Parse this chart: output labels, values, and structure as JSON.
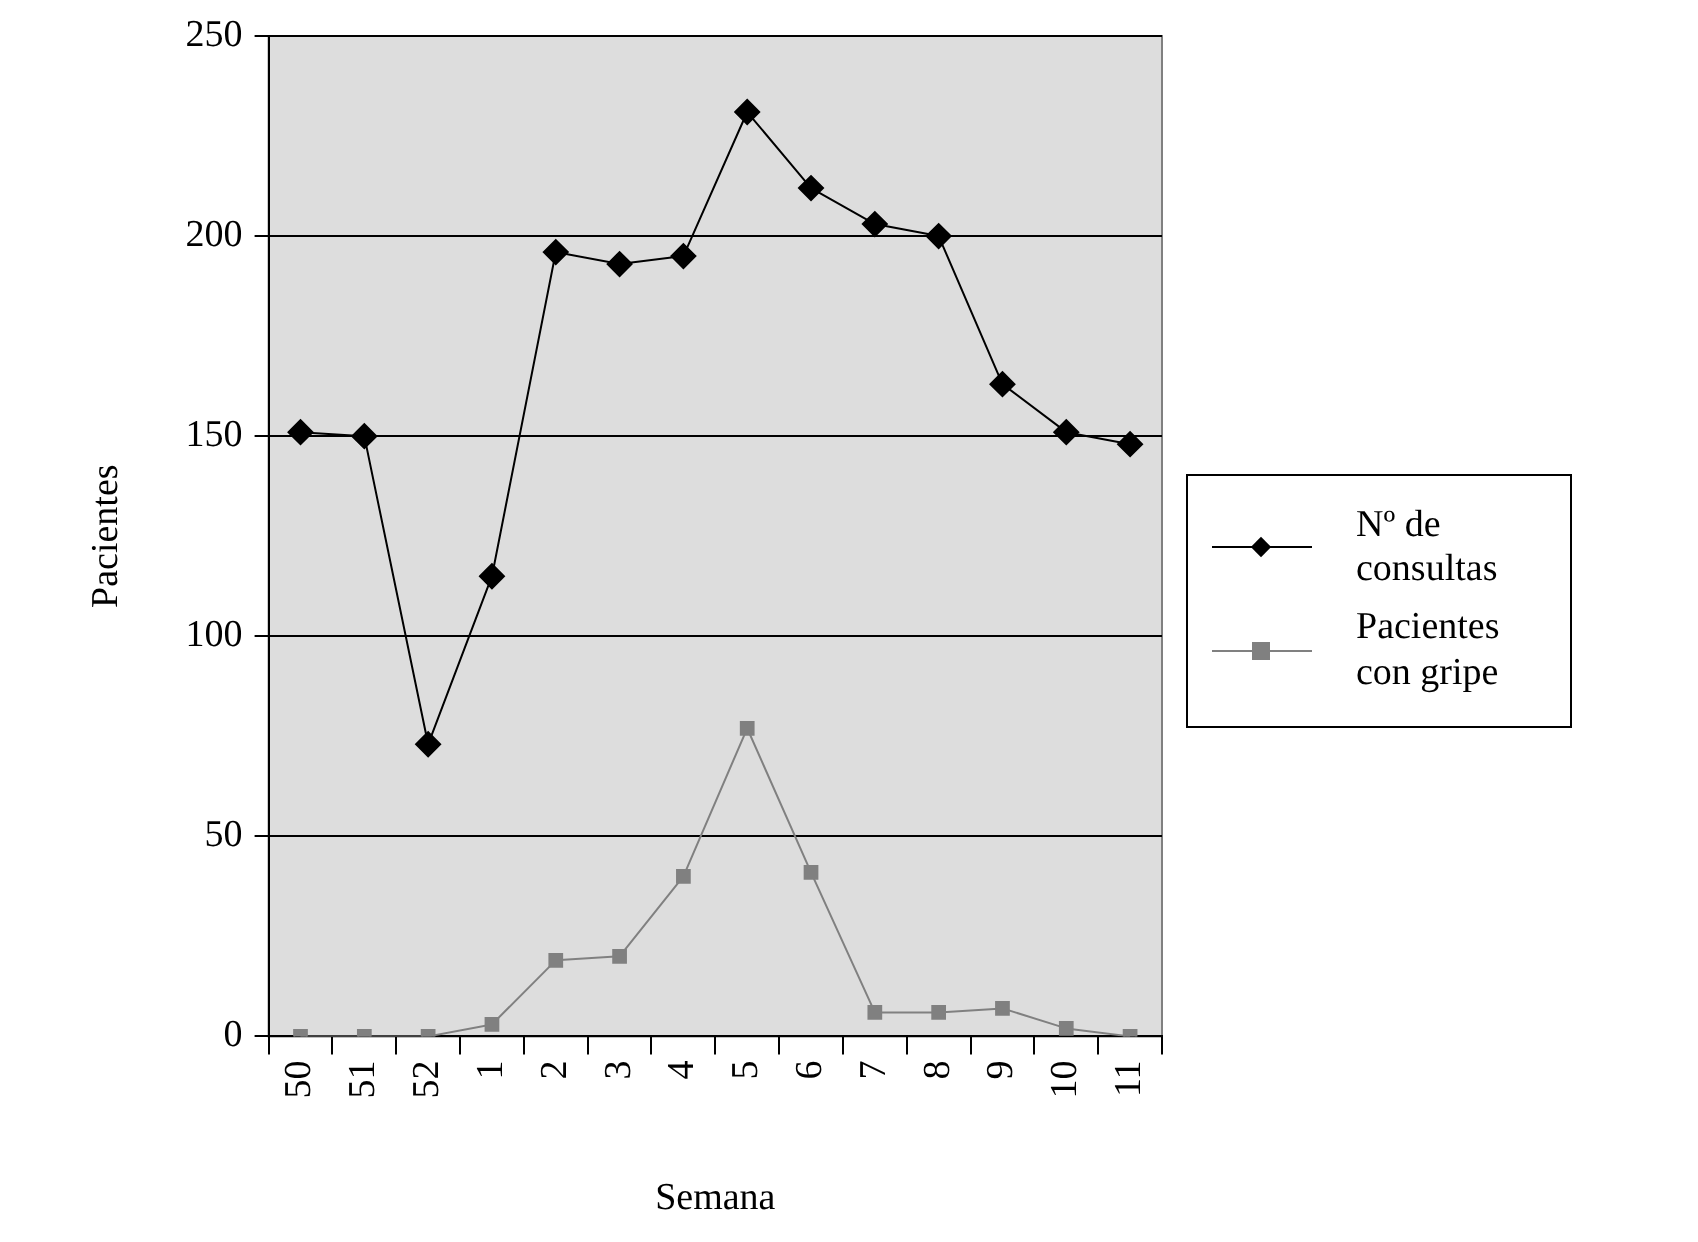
{
  "chart_data": {
    "type": "line",
    "xlabel": "Semana",
    "ylabel": "Pacientes",
    "categories": [
      "50",
      "51",
      "52",
      "1",
      "2",
      "3",
      "4",
      "5",
      "6",
      "7",
      "8",
      "9",
      "10",
      "11"
    ],
    "series": [
      {
        "name": "Nº de consultas",
        "color": "#000000",
        "marker": "diamond",
        "values": [
          151,
          150,
          73,
          115,
          196,
          193,
          195,
          231,
          212,
          203,
          200,
          163,
          151,
          148
        ]
      },
      {
        "name": "Pacientes con gripe",
        "color": "#808080",
        "marker": "square",
        "values": [
          0,
          0,
          0,
          3,
          19,
          20,
          40,
          77,
          41,
          6,
          6,
          7,
          2,
          0
        ]
      }
    ],
    "ylim": [
      0,
      250
    ],
    "yticks": [
      0,
      50,
      100,
      150,
      200,
      250
    ],
    "grid": "y",
    "legend": "right"
  }
}
